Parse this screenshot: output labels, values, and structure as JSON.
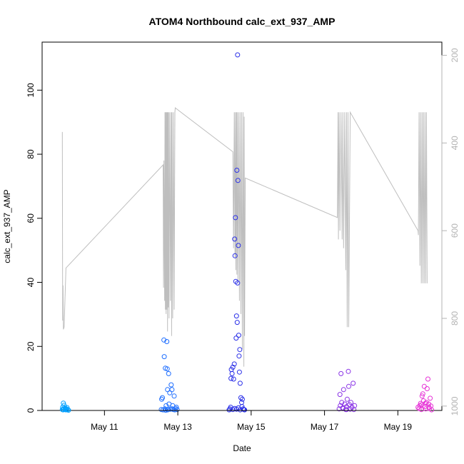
{
  "chart_data": {
    "type": "scatter",
    "title": "ATOM4 Northbound calc_ext_937_AMP",
    "xlabel": "Date",
    "ylabel": "calc_ext_937_AMP",
    "x_ticks": [
      "May 11",
      "May 13",
      "May 15",
      "May 17",
      "May 19"
    ],
    "x_tick_day": [
      11,
      13,
      15,
      17,
      19
    ],
    "xlim_day": [
      9.3,
      20.2
    ],
    "ylim": [
      0,
      115
    ],
    "y_ticks": [
      0,
      20,
      40,
      60,
      80,
      100
    ],
    "y2_ticks": [
      200,
      400,
      600,
      800,
      1000
    ],
    "y2_reversed": true,
    "y2_range": [
      1010,
      170
    ],
    "grid": false,
    "point_shape": "open-circle",
    "colors": {
      "line": "#bebebe",
      "right_axis": "#b3b3b3",
      "burst1": "#00a0ff",
      "burst2": "#1e6eff",
      "burst3": "#2b30e8",
      "burst4": "#8a34e6",
      "burst5": "#e632d6"
    },
    "series": [
      {
        "color_key": "burst1",
        "points": [
          [
            9.85,
            0.3
          ],
          [
            9.86,
            1.0
          ],
          [
            9.87,
            0.2
          ],
          [
            9.88,
            2.3
          ],
          [
            9.89,
            0.5
          ],
          [
            9.9,
            1.6
          ],
          [
            9.92,
            0.3
          ],
          [
            9.93,
            0.8
          ],
          [
            9.95,
            0.2
          ],
          [
            9.97,
            0.4
          ],
          [
            9.98,
            0.9
          ],
          [
            10.0,
            0.3
          ],
          [
            10.02,
            0.1
          ]
        ]
      },
      {
        "color_key": "burst2",
        "points": [
          [
            12.55,
            0.3
          ],
          [
            12.56,
            3.5
          ],
          [
            12.58,
            4.0
          ],
          [
            12.6,
            0.2
          ],
          [
            12.62,
            22.0
          ],
          [
            12.63,
            16.8
          ],
          [
            12.65,
            0.5
          ],
          [
            12.66,
            13.2
          ],
          [
            12.68,
            1.5
          ],
          [
            12.7,
            21.5
          ],
          [
            12.71,
            13.0
          ],
          [
            12.72,
            6.5
          ],
          [
            12.74,
            0.3
          ],
          [
            12.75,
            11.5
          ],
          [
            12.76,
            2.0
          ],
          [
            12.78,
            5.5
          ],
          [
            12.8,
            0.4
          ],
          [
            12.82,
            8.0
          ],
          [
            12.84,
            6.5
          ],
          [
            12.86,
            1.5
          ],
          [
            12.88,
            0.3
          ],
          [
            12.9,
            4.5
          ],
          [
            12.92,
            0.2
          ],
          [
            12.94,
            0.6
          ],
          [
            12.96,
            1.0
          ],
          [
            12.98,
            0.3
          ],
          [
            12.72,
            0.2
          ],
          [
            12.67,
            0.1
          ],
          [
            12.85,
            0.5
          ]
        ]
      },
      {
        "color_key": "burst3",
        "points": [
          [
            14.4,
            0.2
          ],
          [
            14.42,
            0.5
          ],
          [
            14.44,
            1.0
          ],
          [
            14.45,
            10.0
          ],
          [
            14.46,
            12.8
          ],
          [
            14.48,
            11.5
          ],
          [
            14.5,
            13.5
          ],
          [
            14.52,
            9.8
          ],
          [
            14.54,
            14.5
          ],
          [
            14.55,
            53.5
          ],
          [
            14.56,
            48.3
          ],
          [
            14.57,
            60.2
          ],
          [
            14.58,
            40.3
          ],
          [
            14.59,
            22.6
          ],
          [
            14.6,
            29.5
          ],
          [
            14.61,
            75.0
          ],
          [
            14.62,
            27.5
          ],
          [
            14.63,
            111.0
          ],
          [
            14.63,
            39.8
          ],
          [
            14.64,
            71.8
          ],
          [
            14.65,
            51.5
          ],
          [
            14.66,
            23.5
          ],
          [
            14.67,
            17.0
          ],
          [
            14.68,
            12.0
          ],
          [
            14.69,
            19.0
          ],
          [
            14.7,
            8.5
          ],
          [
            14.72,
            4.0
          ],
          [
            14.74,
            2.5
          ],
          [
            14.75,
            1.2
          ],
          [
            14.76,
            3.5
          ],
          [
            14.78,
            0.5
          ],
          [
            14.8,
            0.3
          ],
          [
            14.82,
            0.2
          ],
          [
            14.5,
            0.3
          ],
          [
            14.55,
            0.6
          ],
          [
            14.6,
            0.4
          ],
          [
            14.65,
            0.8
          ],
          [
            14.7,
            0.2
          ]
        ]
      },
      {
        "color_key": "burst4",
        "points": [
          [
            17.4,
            0.5
          ],
          [
            17.42,
            5.0
          ],
          [
            17.43,
            1.5
          ],
          [
            17.45,
            11.5
          ],
          [
            17.47,
            2.5
          ],
          [
            17.5,
            0.6
          ],
          [
            17.52,
            6.5
          ],
          [
            17.55,
            2.0
          ],
          [
            17.58,
            0.3
          ],
          [
            17.6,
            1.2
          ],
          [
            17.62,
            3.5
          ],
          [
            17.65,
            12.2
          ],
          [
            17.66,
            7.5
          ],
          [
            17.68,
            1.8
          ],
          [
            17.7,
            0.4
          ],
          [
            17.72,
            2.5
          ],
          [
            17.75,
            1.0
          ],
          [
            17.78,
            8.5
          ],
          [
            17.8,
            0.3
          ],
          [
            17.82,
            1.5
          ],
          [
            17.5,
            0.8
          ],
          [
            17.6,
            0.3
          ]
        ]
      },
      {
        "color_key": "burst5",
        "points": [
          [
            19.55,
            1.0
          ],
          [
            19.58,
            0.6
          ],
          [
            19.6,
            1.5
          ],
          [
            19.62,
            2.2
          ],
          [
            19.64,
            0.3
          ],
          [
            19.66,
            4.5
          ],
          [
            19.68,
            5.2
          ],
          [
            19.7,
            3.0
          ],
          [
            19.72,
            7.5
          ],
          [
            19.74,
            1.2
          ],
          [
            19.76,
            0.5
          ],
          [
            19.78,
            2.5
          ],
          [
            19.8,
            6.8
          ],
          [
            19.82,
            9.8
          ],
          [
            19.84,
            2.0
          ],
          [
            19.86,
            0.6
          ],
          [
            19.88,
            3.8
          ],
          [
            19.9,
            1.4
          ],
          [
            19.92,
            0.2
          ],
          [
            19.65,
            1.8
          ],
          [
            19.75,
            2.2
          ],
          [
            19.85,
            1.0
          ]
        ]
      }
    ],
    "line_series": {
      "axis": "right",
      "points": [
        [
          9.85,
          375
        ],
        [
          9.86,
          805
        ],
        [
          9.87,
          725
        ],
        [
          9.88,
          825
        ],
        [
          9.9,
          820
        ],
        [
          9.95,
          685
        ],
        [
          12.6,
          450
        ],
        [
          12.61,
          730
        ],
        [
          12.62,
          440
        ],
        [
          12.64,
          760
        ],
        [
          12.65,
          330
        ],
        [
          12.66,
          780
        ],
        [
          12.67,
          330
        ],
        [
          12.68,
          790
        ],
        [
          12.69,
          330
        ],
        [
          12.7,
          780
        ],
        [
          12.71,
          330
        ],
        [
          12.72,
          830
        ],
        [
          12.73,
          330
        ],
        [
          12.74,
          775
        ],
        [
          12.75,
          330
        ],
        [
          12.76,
          800
        ],
        [
          12.78,
          330
        ],
        [
          12.8,
          760
        ],
        [
          12.82,
          330
        ],
        [
          12.83,
          840
        ],
        [
          12.84,
          330
        ],
        [
          12.86,
          800
        ],
        [
          12.88,
          330
        ],
        [
          12.9,
          780
        ],
        [
          12.92,
          330
        ],
        [
          12.93,
          320
        ],
        [
          14.5,
          420
        ],
        [
          14.52,
          640
        ],
        [
          14.54,
          330
        ],
        [
          14.56,
          660
        ],
        [
          14.57,
          330
        ],
        [
          14.58,
          690
        ],
        [
          14.6,
          330
        ],
        [
          14.61,
          700
        ],
        [
          14.62,
          330
        ],
        [
          14.64,
          720
        ],
        [
          14.66,
          330
        ],
        [
          14.68,
          760
        ],
        [
          14.7,
          330
        ],
        [
          14.72,
          790
        ],
        [
          14.74,
          330
        ],
        [
          14.76,
          870
        ],
        [
          14.78,
          330
        ],
        [
          14.8,
          910
        ],
        [
          14.81,
          340
        ],
        [
          14.82,
          840
        ],
        [
          14.84,
          480
        ],
        [
          17.35,
          570
        ],
        [
          17.37,
          330
        ],
        [
          17.38,
          620
        ],
        [
          17.4,
          330
        ],
        [
          17.42,
          600
        ],
        [
          17.45,
          330
        ],
        [
          17.48,
          620
        ],
        [
          17.5,
          330
        ],
        [
          17.52,
          640
        ],
        [
          17.55,
          330
        ],
        [
          17.58,
          690
        ],
        [
          17.6,
          330
        ],
        [
          17.62,
          820
        ],
        [
          17.64,
          330
        ],
        [
          17.66,
          820
        ],
        [
          17.7,
          330
        ],
        [
          19.55,
          600
        ],
        [
          19.56,
          610
        ],
        [
          19.58,
          330
        ],
        [
          19.6,
          680
        ],
        [
          19.62,
          330
        ],
        [
          19.64,
          720
        ],
        [
          19.66,
          330
        ],
        [
          19.68,
          720
        ],
        [
          19.7,
          330
        ],
        [
          19.72,
          720
        ],
        [
          19.74,
          330
        ],
        [
          19.76,
          720
        ],
        [
          19.78,
          330
        ],
        [
          19.8,
          720
        ]
      ]
    }
  }
}
